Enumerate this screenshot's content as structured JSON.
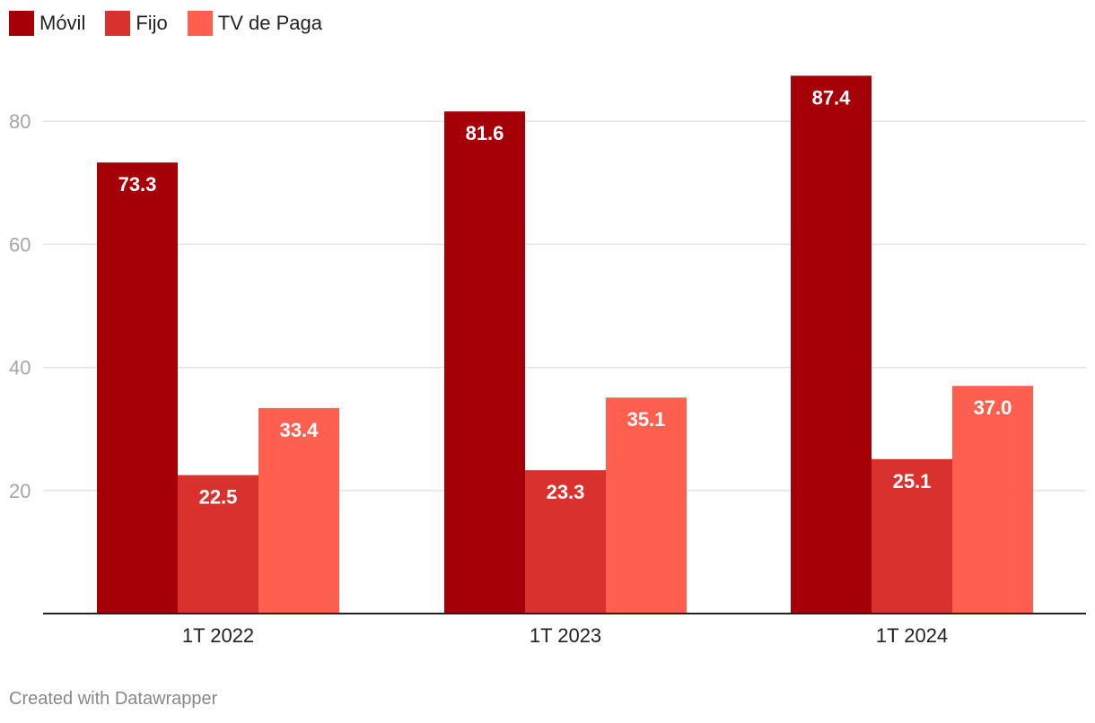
{
  "legend": [
    {
      "label": "Móvil",
      "color": "#a50008"
    },
    {
      "label": "Fijo",
      "color": "#d9322e"
    },
    {
      "label": "TV de Paga",
      "color": "#ff5f4e"
    }
  ],
  "footer": "Created with Datawrapper",
  "chart_data": {
    "type": "bar",
    "categories": [
      "1T 2022",
      "1T 2023",
      "1T 2024"
    ],
    "series": [
      {
        "name": "Móvil",
        "values": [
          73.3,
          81.6,
          87.4
        ],
        "labels": [
          "73.3",
          "81.6",
          "87.4"
        ],
        "color": "#a50008"
      },
      {
        "name": "Fijo",
        "values": [
          22.5,
          23.3,
          25.1
        ],
        "labels": [
          "22.5",
          "23.3",
          "25.1"
        ],
        "color": "#d9322e"
      },
      {
        "name": "TV de Paga",
        "values": [
          33.4,
          35.1,
          37.0
        ],
        "labels": [
          "33.4",
          "35.1",
          "37.0"
        ],
        "color": "#ff5f4e"
      }
    ],
    "yticks": [
      20,
      40,
      60,
      80
    ],
    "ylim": [
      0,
      90
    ],
    "grid": true,
    "legend_position": "top-left"
  }
}
